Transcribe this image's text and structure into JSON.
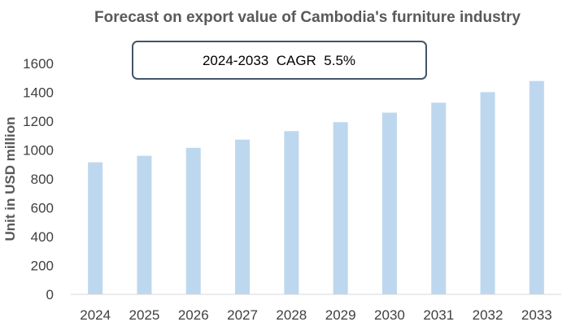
{
  "chart_data": {
    "type": "bar",
    "title": "Forecast on export value of Cambodia's furniture industry",
    "xlabel": "",
    "ylabel": "Unit in USD million",
    "categories": [
      "2024",
      "2025",
      "2026",
      "2027",
      "2028",
      "2029",
      "2030",
      "2031",
      "2032",
      "2033"
    ],
    "values": [
      915,
      960,
      1015,
      1072,
      1131,
      1193,
      1259,
      1328,
      1401,
      1478
    ],
    "ylim": [
      0,
      1600
    ],
    "yticks": [
      0,
      200,
      400,
      600,
      800,
      1000,
      1200,
      1400,
      1600
    ],
    "grid": false,
    "legend": "none",
    "annotation": "2024-2033  CAGR  5.5%",
    "colors": {
      "bar": "#bdd7ee",
      "annotation_border": "#44546a",
      "axis_line": "#d9d9d9"
    }
  }
}
